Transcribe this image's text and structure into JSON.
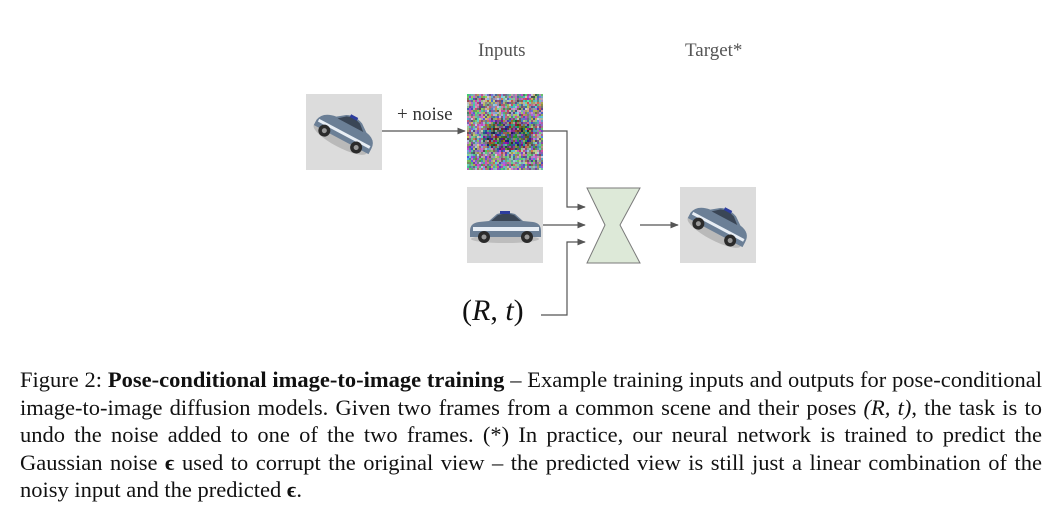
{
  "figure": {
    "inputs_label": "Inputs",
    "target_label": "Target*",
    "noise_label": "+ noise",
    "pose_symbol_open": "(",
    "pose_R": "R",
    "pose_comma": ", ",
    "pose_t": "t",
    "pose_symbol_close": ")",
    "colors": {
      "tile_bg": "#dcdcdc",
      "network_fill": "#dde9d8",
      "network_stroke": "#7a7a7a",
      "car_body": "#6b7f96",
      "car_stripe": "#e8eef5",
      "arrow": "#555555"
    }
  },
  "caption": {
    "prefix": "Figure 2: ",
    "title": "Pose-conditional image-to-image training",
    "text1": " – Example training inputs and outputs for pose-conditional image-to-image diffusion models.  Given two frames from a common scene and their poses ",
    "pose": "(R, t)",
    "text2": ", the task is to undo the noise added to one of the two frames.  (*) In practice, our neural network is trained to predict the Gaussian noise ",
    "epsilon1": "ϵ",
    "text3": " used to corrupt the original view – the predicted view is still just a linear combination of the noisy input and the predicted ",
    "epsilon2": "ϵ",
    "text4": "."
  }
}
